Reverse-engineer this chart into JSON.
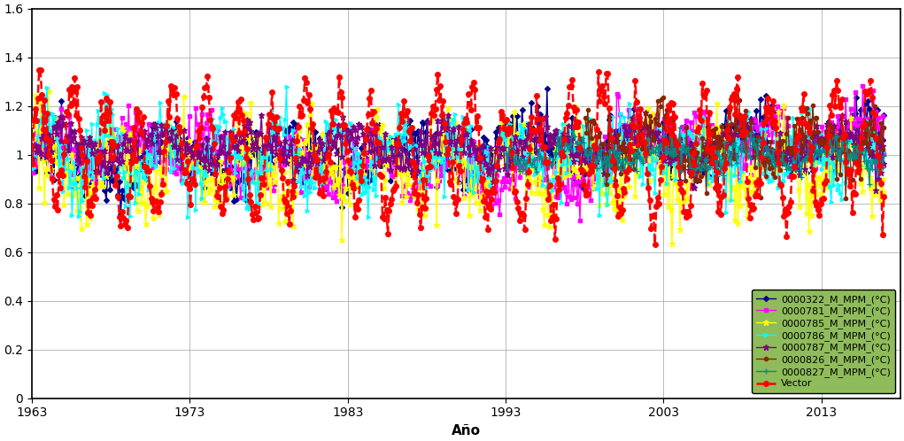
{
  "title": "",
  "xlabel": "Año",
  "ylabel": "",
  "xlim": [
    1963,
    2018
  ],
  "ylim": [
    0,
    1.6
  ],
  "yticks": [
    0,
    0.2,
    0.4,
    0.6,
    0.8,
    1.0,
    1.2,
    1.4,
    1.6
  ],
  "xticks": [
    1963,
    1973,
    1983,
    1993,
    2003,
    2013
  ],
  "background_color": "#ffffff",
  "legend_bg": "#8fbc5a",
  "series": [
    {
      "label": "0000322_M_MPM_(°C)",
      "color": "#00008B",
      "marker": "D",
      "markersize": 3,
      "linewidth": 1.0,
      "linestyle": "-",
      "zorder": 4
    },
    {
      "label": "0000781_M_MPM_(°C)",
      "color": "#FF00FF",
      "marker": "s",
      "markersize": 3,
      "linewidth": 1.0,
      "linestyle": "-",
      "zorder": 4
    },
    {
      "label": "0000785_M_MPM_(°C)",
      "color": "#FFFF00",
      "marker": "*",
      "markersize": 5,
      "linewidth": 1.0,
      "linestyle": "-",
      "zorder": 4
    },
    {
      "label": "0000786_M_MPM_(°C)",
      "color": "#00FFFF",
      "marker": ">",
      "markersize": 3,
      "linewidth": 1.0,
      "linestyle": "-",
      "zorder": 4
    },
    {
      "label": "0000787_M_MPM_(°C)",
      "color": "#800080",
      "marker": "*",
      "markersize": 5,
      "linewidth": 1.0,
      "linestyle": "-",
      "zorder": 4
    },
    {
      "label": "0000826_M_MPM_(°C)",
      "color": "#8B2500",
      "marker": "o",
      "markersize": 3,
      "linewidth": 1.0,
      "linestyle": "-",
      "zorder": 4
    },
    {
      "label": "0000827_M_MPM_(°C)",
      "color": "#008B8B",
      "marker": "+",
      "markersize": 4,
      "linewidth": 1.0,
      "linestyle": "-",
      "zorder": 4
    },
    {
      "label": "Vector",
      "color": "#FF0000",
      "marker": "o",
      "markersize": 4,
      "linewidth": 1.8,
      "linestyle": "--",
      "zorder": 5
    }
  ]
}
